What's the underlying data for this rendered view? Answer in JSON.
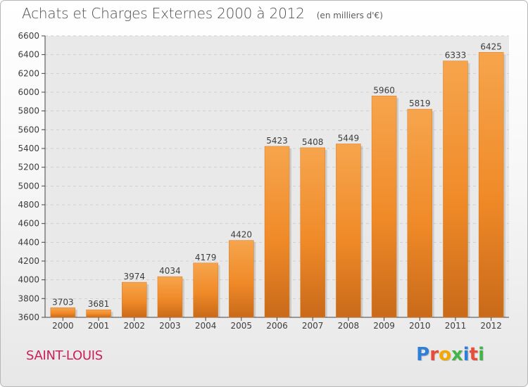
{
  "chart_data": {
    "type": "bar",
    "title": "Achats et Charges Externes 2000 à 2012",
    "subtitle": "(en milliers d'€)",
    "categories": [
      "2000",
      "2001",
      "2002",
      "2003",
      "2004",
      "2005",
      "2006",
      "2007",
      "2008",
      "2009",
      "2010",
      "2011",
      "2012"
    ],
    "values": [
      3703,
      3681,
      3974,
      4034,
      4179,
      4420,
      5423,
      5408,
      5449,
      5960,
      5819,
      6333,
      6425
    ],
    "ylim": [
      3600,
      6600
    ],
    "yticks": [
      3600,
      3800,
      4000,
      4200,
      4400,
      4600,
      4800,
      5000,
      5200,
      5400,
      5600,
      5800,
      6000,
      6200,
      6400,
      6600
    ],
    "grid": true,
    "bar_color": "#f08a28",
    "bar_light_color": "#f6a54d",
    "bar_dark_color": "#c96a1a",
    "xlabel": "",
    "ylabel": ""
  },
  "footer": {
    "place": "SAINT-LOUIS",
    "brand_letters": [
      "P",
      "r",
      "o",
      "x",
      "i",
      "t",
      "i"
    ],
    "brand_colors": [
      "#2f7ed8",
      "#e84c3d",
      "#f2a900",
      "#44b449",
      "#2f7ed8",
      "#e84c3d",
      "#44b449"
    ]
  }
}
